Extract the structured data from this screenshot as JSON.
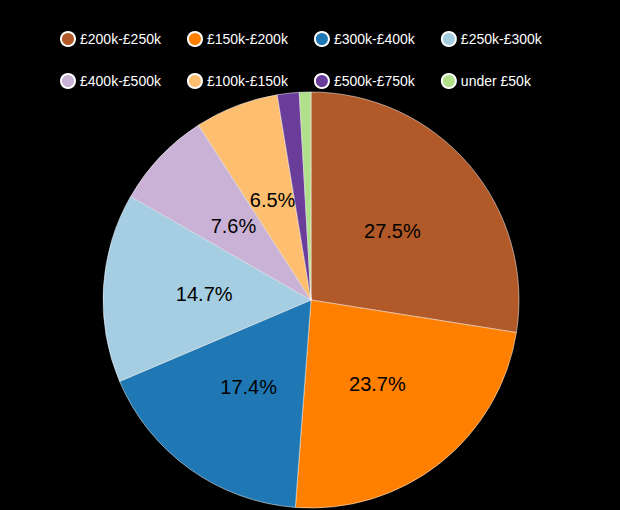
{
  "chart_data": {
    "type": "pie",
    "categories": [
      "£200k-£250k",
      "£150k-£200k",
      "£300k-£400k",
      "£250k-£300k",
      "£400k-£500k",
      "£100k-£150k",
      "£500k-£750k",
      "under £50k"
    ],
    "values": [
      27.5,
      23.7,
      17.4,
      14.7,
      7.6,
      6.5,
      1.7,
      0.9
    ],
    "value_labels": [
      "27.5%",
      "23.7%",
      "17.4%",
      "14.7%",
      "7.6%",
      "6.5%",
      null,
      null
    ],
    "colors": [
      "#b15928",
      "#ff7f00",
      "#1f78b4",
      "#a6cee3",
      "#cab2d6",
      "#fdbf6f",
      "#6a3d9a",
      "#b2df8a"
    ],
    "data_labels": true,
    "legend": "top"
  }
}
